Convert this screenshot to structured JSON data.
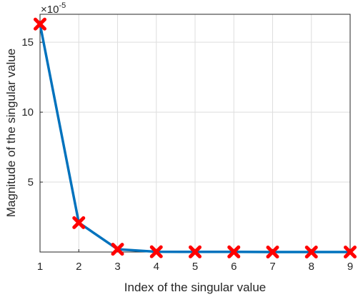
{
  "chart_data": {
    "type": "line",
    "xlabel": "Index of the singular value",
    "ylabel": "Magnitude of the singular value",
    "x": [
      1,
      2,
      3,
      4,
      5,
      6,
      7,
      8,
      9
    ],
    "xticks": [
      "1",
      "2",
      "3",
      "4",
      "5",
      "6",
      "7",
      "8",
      "9"
    ],
    "xlim": [
      1,
      9
    ],
    "ylim": [
      0,
      17
    ],
    "yticks": [
      "5",
      "10",
      "15"
    ],
    "y_exponent_base": "×10",
    "y_exponent_power": "-5",
    "grid": true,
    "series": [
      {
        "values": [
          16.3,
          2.1,
          0.2,
          0.02,
          0.01,
          0.01,
          0.0,
          0.0,
          0.0
        ],
        "line_color": "#0072BD",
        "marker": "x",
        "marker_color": "#FF0000"
      }
    ]
  }
}
